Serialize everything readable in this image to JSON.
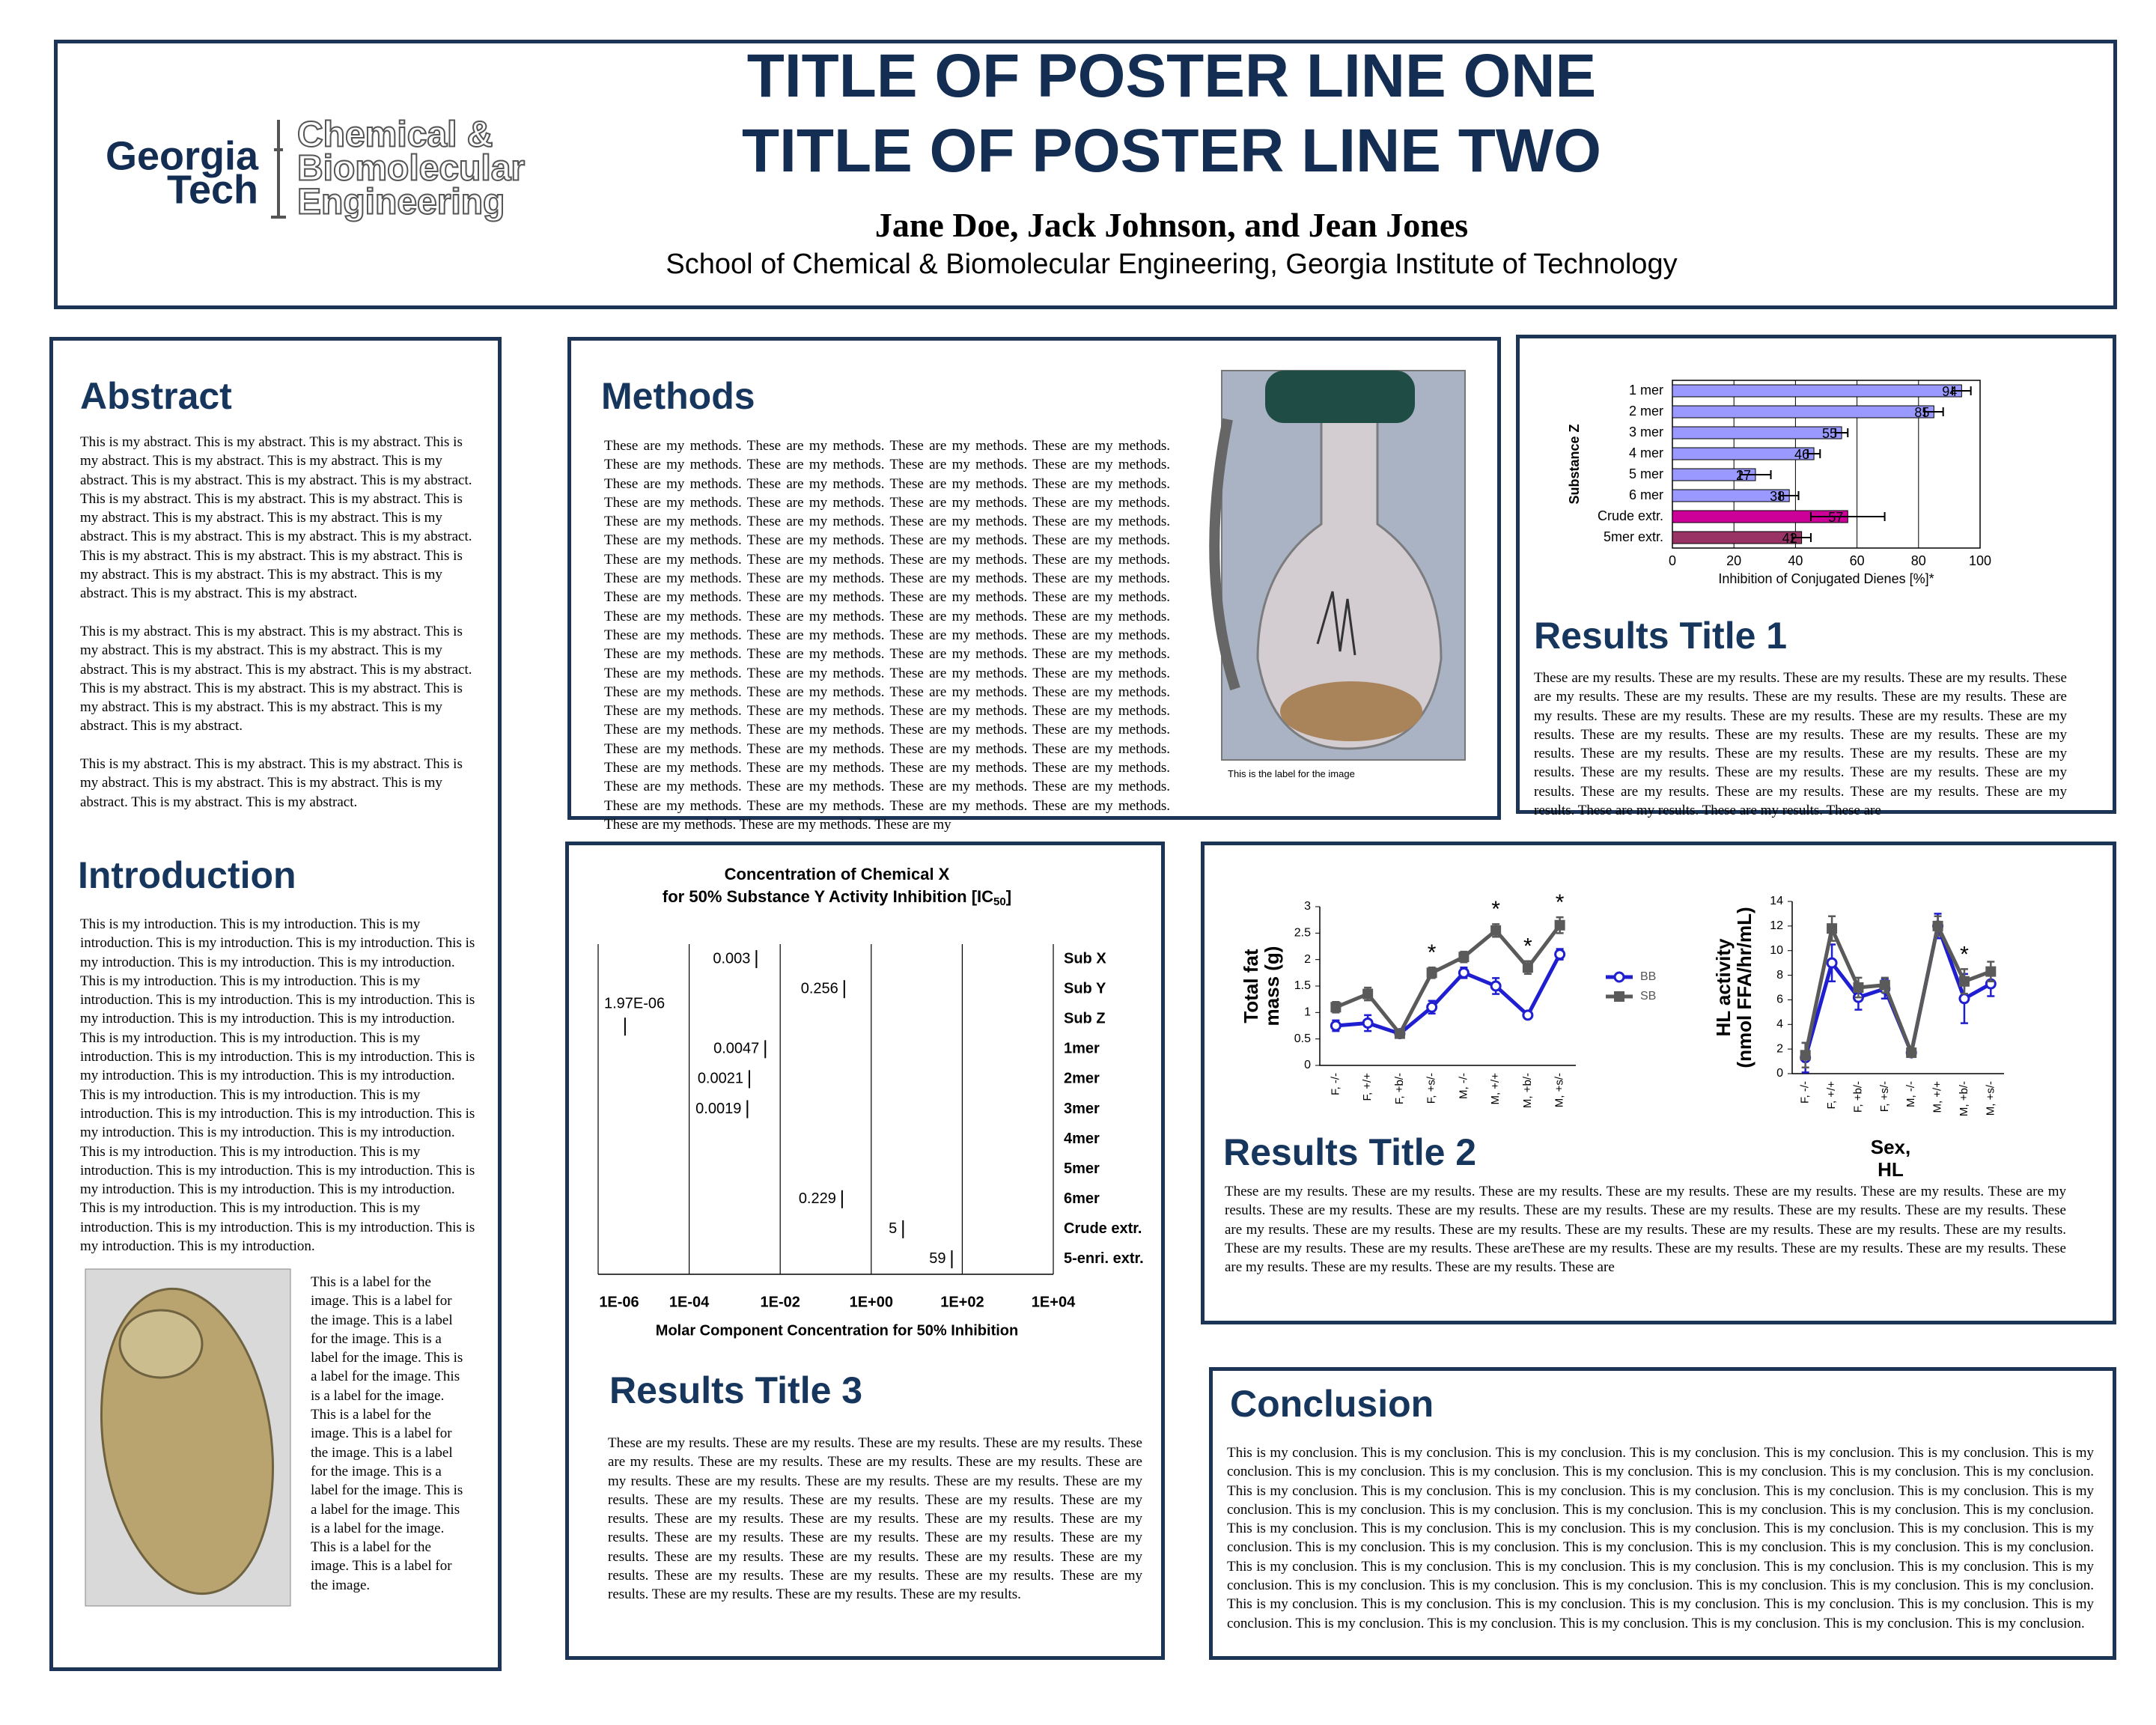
{
  "header": {
    "title_lines": [
      "TITLE OF POSTER LINE ONE",
      "TITLE OF POSTER LINE TWO"
    ],
    "authors": "Jane Doe, Jack Johnson, and Jean Jones",
    "affiliation": "School of Chemical & Biomolecular Engineering, Georgia Institute of Technology",
    "logo": {
      "university": [
        "Georgia",
        "Tech"
      ],
      "department": [
        "Chemical &",
        "Biomolecular",
        "Engineering"
      ]
    }
  },
  "abstract": {
    "heading": "Abstract",
    "paragraphs": [
      "This is my abstract. This is my abstract. This is my abstract. This is my abstract. This is my abstract. This is my abstract. This is my abstract. This is my abstract. This is my abstract. This is my abstract. This is my abstract. This is my abstract. This is my abstract. This is my abstract. This is my abstract. This is my abstract. This is my abstract. This is my abstract. This is my abstract. This is my abstract. This is my abstract. This is my abstract. This is my abstract. This is my abstract. This is my abstract. This is my abstract. This is my abstract. This is my abstract. This is my abstract.",
      "This is my abstract. This is my abstract. This is my abstract. This is my abstract. This is my abstract. This is my abstract. This is my abstract. This is my abstract. This is my abstract. This is my abstract. This is my abstract. This is my abstract. This is my abstract. This is my abstract. This is my abstract. This is my abstract. This is my abstract. This is my abstract.",
      "This is my abstract. This is my abstract. This is my abstract. This is my abstract. This is my abstract. This is my abstract. This is my abstract. This is my abstract. This is my abstract."
    ]
  },
  "introduction": {
    "heading": "Introduction",
    "text": "This is my introduction. This is my introduction. This is my introduction. This is my introduction. This is my introduction. This is my introduction. This is my introduction. This is my introduction. This is my introduction. This is my introduction. This is my introduction. This is my introduction. This is my introduction. This is my introduction. This is my introduction. This is my introduction. This is my introduction. This is my introduction. This is my introduction. This is my introduction. This is my introduction. This is my introduction. This is my introduction. This is my introduction. This is my introduction. This is my introduction. This is my introduction. This is my introduction. This is my introduction. This is my introduction. This is my introduction. This is my introduction. This is my introduction. This is my introduction. This is my introduction. This is my introduction. This is my introduction. This is my introduction. This is my introduction. This is my introduction. This is my introduction. This is my introduction. This is my introduction. This is my introduction. This is my introduction. This is my introduction. This is my introduction."
  },
  "figure_1": {
    "caption": "This is a label for the image. This is a label for the image. This is a label for the image. This is a label for the image. This is a label for the image. This is a label for the image. This is a label for the image. This is a label for the image. This is a label for the image. This is a label for the image. This is a label for the image. This is a label for the image. This is a label for the image. This is a label for the image."
  },
  "methods": {
    "heading": "Methods",
    "text": "These are my methods. These are my methods. These are my methods. These are my methods. These are my methods. These are my methods. These are my methods. These are my methods. These are my methods. These are my methods. These are my methods. These are my methods. These are my methods. These are my methods. These are my methods. These are my methods. These are my methods. These are my methods. These are my methods. These are my methods. These are my methods. These are my methods. These are my methods. These are my methods. These are my methods. These are my methods. These are my methods. These are my methods. These are my methods. These are my methods. These are my methods. These are my methods. These are my methods. These are my methods. These are my methods. These are my methods. These are my methods. These are my methods. These are my methods. These are my methods. These are my methods. These are my methods. These are my methods. These are my methods. These are my methods. These are my methods. These are my methods. These are my methods. These are my methods. These are my methods. These are my methods. These are my methods. These are my methods. These are my methods. These are my methods. These are my methods. These are my methods. These are my methods. These are my methods. These are my methods. These are my methods. These are my methods. These are my methods. These are my methods. These are my methods. These are my methods. These are my methods. These are my methods. These are my methods. These are my methods. These are my methods. These are my methods. These are my methods. These are my methods. These are my methods. These are my methods. These are my methods. These are my methods. These are my methods. These are my methods. These are my methods. These are my methods. These are my",
    "image_caption": "This is the label for the image"
  },
  "results_1": {
    "heading": "Results Title 1",
    "text": "These are my results. These are my results. These are my results. These are my results. These are my results. These are my results. These are my results. These are my results. These are my results. These are my results. These are my results. These are my results. These are my results. These are my results. These are my results. These are my results. These are my results. These are my results. These are my results. These are my results. These are my results. These are my results. These are my results. These are my results. These are my results. These are my results. These are my results. These are my results. These are my results. These are my results. These are my results. These are"
  },
  "results_2": {
    "heading": "Results Title 2",
    "text": "These are my results. These are my results. These are my results. These are my results. These are my results. These are my results. These are my results. These are my results. These are my results. These are my results. These are my results. These are my results. These are my results. These are my results. These are my results. These are my results. These are my results. These are my results. These are my results. These are my results. These are my results. These are my results. These areThese are my results. These are my results. These are my results. These are my results. These are my results. These are my results. These are my results. These are"
  },
  "results_3": {
    "heading": "Results Title 3",
    "text": "These are my results. These are my results. These are my results. These are my results. These are my results. These are my results. These are my results. These are my results. These are my results. These are my results. These are my results. These are my results. These are my results. These are my results. These are my results. These are my results. These are my results. These are my results. These are my results. These are my results. These are my results. These are my results. These are my results. These are my results. These are my results. These are my results. These are my results. These are my results. These are my results. These are my results. These are my results. These are my results. These are my results. These are my results. These are my results. These are my results."
  },
  "conclusion": {
    "heading": "Conclusion",
    "text": "This is my conclusion. This is my conclusion. This is my conclusion. This is my conclusion. This is my conclusion. This is my conclusion. This is my conclusion. This is my conclusion. This is my conclusion. This is my conclusion. This is my conclusion. This is my conclusion. This is my conclusion. This is my conclusion. This is my conclusion. This is my conclusion. This is my conclusion. This is my conclusion. This is my conclusion. This is my conclusion. This is my conclusion. This is my conclusion. This is my conclusion. This is my conclusion. This is my conclusion. This is my conclusion. This is my conclusion. This is my conclusion. This is my conclusion. This is my conclusion. This is my conclusion. This is my conclusion. This is my conclusion. This is my conclusion. This is my conclusion. This is my conclusion. This is my conclusion. This is my conclusion. This is my conclusion. This is my conclusion. This is my conclusion. This is my conclusion. This is my conclusion. This is my conclusion. This is my conclusion. This is my conclusion. This is my conclusion. This is my conclusion. This is my conclusion. This is my conclusion. This is my conclusion. This is my conclusion. This is my conclusion. This is my conclusion. This is my conclusion. This is my conclusion. This is my conclusion. This is my conclusion. This is my conclusion. This is my conclusion. This is my conclusion. This is my conclusion. This is my conclusion. This is my conclusion. This is my conclusion."
  },
  "chart_data": [
    {
      "type": "bar",
      "orientation": "horizontal",
      "categories": [
        "1 mer",
        "2 mer",
        "3 mer",
        "4 mer",
        "5 mer",
        "6 mer",
        "Crude extr.",
        "5mer extr."
      ],
      "values": [
        94,
        85,
        55,
        46,
        27,
        38,
        57,
        42
      ],
      "errors": [
        3,
        3,
        2,
        2,
        5,
        3,
        12,
        3
      ],
      "colors": [
        "#9999ff",
        "#9999ff",
        "#9999ff",
        "#9999ff",
        "#9999ff",
        "#9999ff",
        "#cc0099",
        "#993366"
      ],
      "xlim": [
        0,
        100
      ],
      "xticks": [
        0,
        20,
        40,
        60,
        80,
        100
      ],
      "xlabel": "Inhibition of Conjugated Dienes [%]*",
      "ylabel": "Substance Z",
      "grid": true
    },
    {
      "type": "strip",
      "title": "Concentration of Chemical X",
      "subtitle": "for 50% Substance Y Activity Inhibition [IC",
      "subtitle_subscript": "50",
      "subtitle_end": "]",
      "categories": [
        "Sub X",
        "Sub Y",
        "Sub Z",
        "1mer",
        "2mer",
        "3mer",
        "4mer",
        "5mer",
        "6mer",
        "Crude extr.",
        "5-enri. extr."
      ],
      "values": [
        0.003,
        0.256,
        1.97e-06,
        0.0047,
        0.0021,
        0.0019,
        null,
        null,
        0.229,
        5,
        59
      ],
      "value_labels": [
        "0.003",
        "0.256",
        "1.97E-06",
        "0.0047",
        "0.0021",
        "0.0019",
        null,
        null,
        "0.229",
        "5",
        "59"
      ],
      "log_x": true,
      "xlim": [
        1e-06,
        10000
      ],
      "xticks": [
        {
          "value": 1e-06,
          "label": "1E-06"
        },
        {
          "value": 0.0001,
          "label": "1E-04"
        },
        {
          "value": 0.01,
          "label": "1E-02"
        },
        {
          "value": 1,
          "label": "1E+00"
        },
        {
          "value": 100,
          "label": "1E+02"
        },
        {
          "value": 10000,
          "label": "1E+04"
        }
      ],
      "xlabel": "Molar Component Concentration for 50% Inhibition",
      "grid": true
    },
    {
      "type": "line",
      "categories": [
        "F, -/-",
        "F, +/+",
        "F, +b/-",
        "F, +s/-",
        "M, -/-",
        "M, +/+",
        "M, +b/-",
        "M, +s/-"
      ],
      "series": [
        {
          "name": "BB",
          "color": "#1f1fd1",
          "marker": "circle",
          "values": [
            0.75,
            0.8,
            0.6,
            1.1,
            1.75,
            1.5,
            0.95,
            2.1
          ],
          "errors": [
            0.1,
            0.15,
            0.05,
            0.12,
            0.1,
            0.15,
            0.05,
            0.1
          ]
        },
        {
          "name": "SB",
          "color": "#5a5a5a",
          "marker": "square",
          "values": [
            1.1,
            1.35,
            0.6,
            1.75,
            2.05,
            2.55,
            1.85,
            2.65
          ],
          "errors": [
            0.1,
            0.12,
            0.05,
            0.1,
            0.1,
            0.12,
            0.12,
            0.15
          ]
        }
      ],
      "ylim": [
        0,
        3
      ],
      "yticks": [
        0,
        0.5,
        1,
        1.5,
        2,
        2.5,
        3
      ],
      "ylabel": [
        "Total fat",
        "mass (g)"
      ],
      "significance": [
        null,
        null,
        null,
        "*",
        null,
        "*",
        "*",
        "*"
      ],
      "legend": true
    },
    {
      "type": "line",
      "categories": [
        "F, -/-",
        "F, +/+",
        "F, +b/-",
        "F, +s/-",
        "M, -/-",
        "M, +/+",
        "M, +b/-",
        "M, +s/-"
      ],
      "series": [
        {
          "color": "#1f1fd1",
          "marker": "circle",
          "values": [
            1.3,
            9,
            6.2,
            6.9,
            1.7,
            12,
            6.1,
            7.3
          ],
          "errors": [
            1.2,
            1.5,
            1,
            0.8,
            0.3,
            1,
            2,
            1
          ]
        },
        {
          "color": "#5a5a5a",
          "marker": "square",
          "values": [
            1.5,
            11.8,
            7,
            7.2,
            1.7,
            12,
            7.5,
            8.3
          ],
          "errors": [
            1,
            1,
            0.8,
            0.6,
            0.3,
            0.8,
            1,
            0.8
          ]
        }
      ],
      "ylim": [
        0,
        14
      ],
      "yticks": [
        0,
        2,
        4,
        6,
        8,
        10,
        12,
        14
      ],
      "ylabel": [
        "HL activity",
        "(nmol FFA/hr/mL)"
      ],
      "xlabel": [
        "Sex,",
        "HL"
      ],
      "significance": [
        null,
        null,
        null,
        null,
        null,
        null,
        "*",
        null
      ],
      "legend": false
    }
  ]
}
